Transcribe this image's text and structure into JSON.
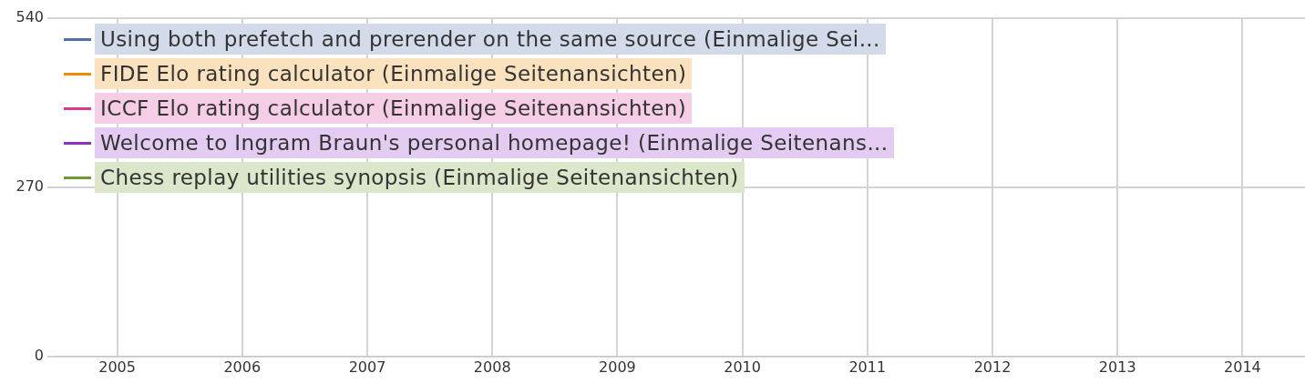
{
  "chart_data": {
    "type": "line",
    "categories": [
      "2005",
      "2006",
      "2007",
      "2008",
      "2009",
      "2010",
      "2011",
      "2012",
      "2013",
      "2014"
    ],
    "series": [
      {
        "name": "Using both prefetch and prerender on the same source (Einmalige Sei...",
        "color": "#4f6fab",
        "values": [
          null,
          null,
          null,
          null,
          null,
          null,
          null,
          null,
          null,
          null
        ]
      },
      {
        "name": "FIDE Elo rating calculator (Einmalige Seitenansichten)",
        "color": "#f08a00",
        "values": [
          null,
          null,
          null,
          null,
          null,
          null,
          null,
          null,
          null,
          null
        ]
      },
      {
        "name": "ICCF Elo rating calculator (Einmalige Seitenansichten)",
        "color": "#d63a96",
        "values": [
          null,
          null,
          null,
          null,
          null,
          null,
          null,
          null,
          null,
          null
        ]
      },
      {
        "name": "Welcome to Ingram Braun's personal homepage! (Einmalige Seitenans...",
        "color": "#8e2fc8",
        "values": [
          null,
          null,
          null,
          null,
          null,
          null,
          null,
          null,
          null,
          null
        ]
      },
      {
        "name": "Chess replay utilities synopsis (Einmalige Seitenansichten)",
        "color": "#6f9a2f",
        "values": [
          null,
          null,
          null,
          null,
          null,
          null,
          null,
          null,
          null,
          null
        ]
      }
    ],
    "ylim": [
      0,
      540
    ],
    "yticks": [
      0,
      270,
      540
    ],
    "grid": true,
    "legend": "top left"
  }
}
